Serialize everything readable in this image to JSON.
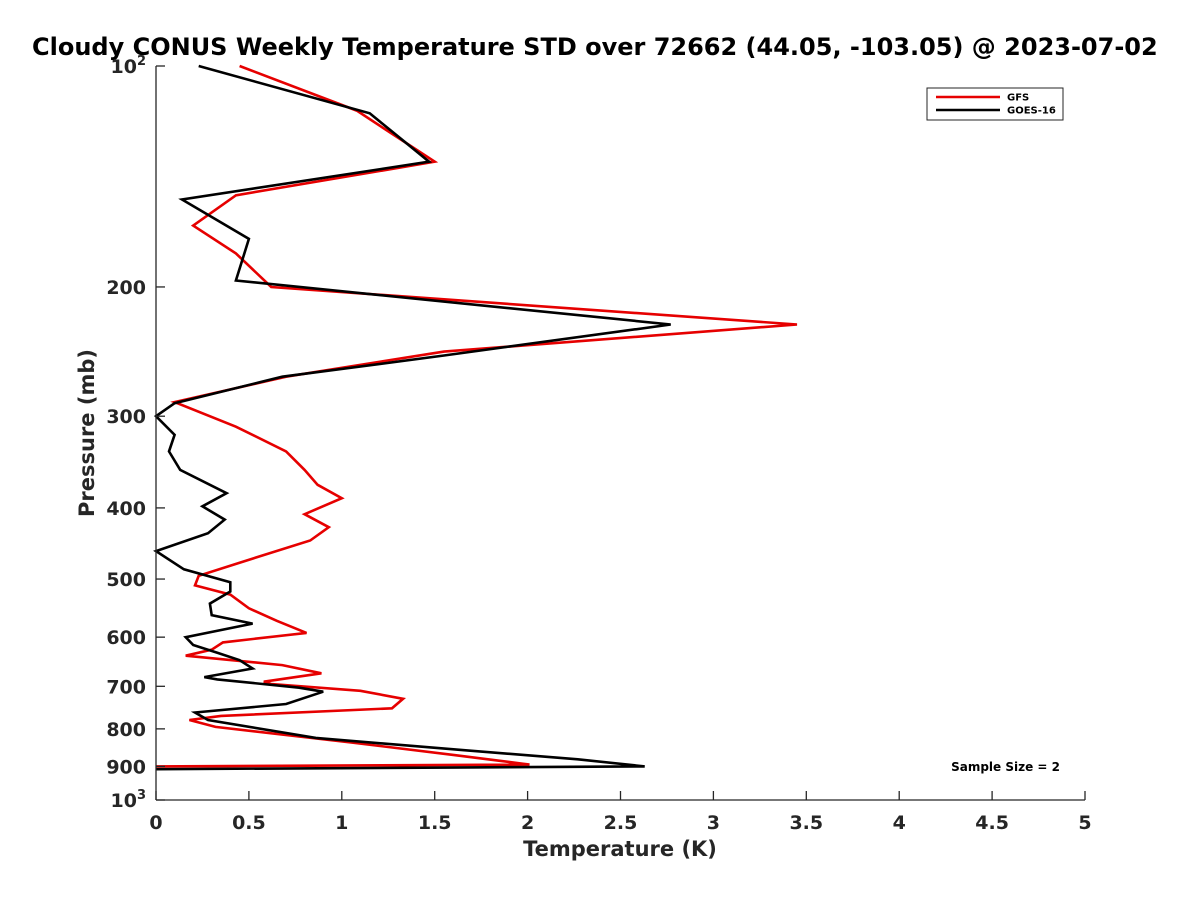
{
  "chart_data": {
    "type": "line",
    "title": "Cloudy CONUS Weekly Temperature STD over 72662 (44.05, -103.05) @ 2023-07-02",
    "xlabel": "Temperature (K)",
    "ylabel": "Pressure (mb)",
    "xlim": [
      0,
      5
    ],
    "ylim": [
      100,
      1000
    ],
    "yscale": "log",
    "y_reversed": true,
    "grid": false,
    "legend_position": "top-right",
    "x_ticks": [
      0,
      0.5,
      1,
      1.5,
      2,
      2.5,
      3,
      3.5,
      4,
      4.5,
      5
    ],
    "x_tick_labels": [
      "0",
      "0.5",
      "1",
      "1.5",
      "2",
      "2.5",
      "3",
      "3.5",
      "4",
      "4.5",
      "5"
    ],
    "y_ticks": [
      100,
      200,
      300,
      400,
      500,
      600,
      700,
      800,
      900,
      1000
    ],
    "y_tick_labels": [
      {
        "base": "10",
        "exp": "2"
      },
      {
        "base": "200",
        "exp": ""
      },
      {
        "base": "300",
        "exp": ""
      },
      {
        "base": "400",
        "exp": ""
      },
      {
        "base": "500",
        "exp": ""
      },
      {
        "base": "600",
        "exp": ""
      },
      {
        "base": "700",
        "exp": ""
      },
      {
        "base": "800",
        "exp": ""
      },
      {
        "base": "900",
        "exp": ""
      },
      {
        "base": "10",
        "exp": "3"
      }
    ],
    "annotation": "Sample Size = 2",
    "series": [
      {
        "name": "GFS",
        "color": "#e60000",
        "points": [
          [
            0.45,
            100
          ],
          [
            1.08,
            115
          ],
          [
            1.5,
            135
          ],
          [
            0.43,
            150
          ],
          [
            0.2,
            165
          ],
          [
            0.43,
            180
          ],
          [
            0.62,
            200
          ],
          [
            3.45,
            225
          ],
          [
            1.55,
            245
          ],
          [
            0.7,
            265
          ],
          [
            0.1,
            287
          ],
          [
            0.43,
            310
          ],
          [
            0.7,
            335
          ],
          [
            0.8,
            355
          ],
          [
            0.87,
            372
          ],
          [
            1.0,
            388
          ],
          [
            0.8,
            408
          ],
          [
            0.93,
            425
          ],
          [
            0.83,
            443
          ],
          [
            0.45,
            475
          ],
          [
            0.23,
            495
          ],
          [
            0.21,
            510
          ],
          [
            0.4,
            525
          ],
          [
            0.5,
            548
          ],
          [
            0.65,
            570
          ],
          [
            0.81,
            592
          ],
          [
            0.36,
            610
          ],
          [
            0.3,
            624
          ],
          [
            0.16,
            636
          ],
          [
            0.68,
            655
          ],
          [
            0.89,
            672
          ],
          [
            0.58,
            690
          ],
          [
            0.62,
            695
          ],
          [
            1.1,
            710
          ],
          [
            1.33,
            728
          ],
          [
            1.27,
            750
          ],
          [
            0.35,
            768
          ],
          [
            0.18,
            778
          ],
          [
            0.32,
            795
          ],
          [
            1.05,
            835
          ],
          [
            1.6,
            868
          ],
          [
            2.01,
            895
          ],
          [
            0,
            900
          ]
        ]
      },
      {
        "name": "GOES-16",
        "color": "#000000",
        "points": [
          [
            0.23,
            100
          ],
          [
            1.15,
            116
          ],
          [
            1.47,
            135
          ],
          [
            0.14,
            152
          ],
          [
            0.5,
            172
          ],
          [
            0.43,
            196
          ],
          [
            2.77,
            225
          ],
          [
            1.55,
            248
          ],
          [
            0.68,
            265
          ],
          [
            0.1,
            288
          ],
          [
            0,
            300
          ],
          [
            0.1,
            318
          ],
          [
            0.07,
            335
          ],
          [
            0.13,
            355
          ],
          [
            0.38,
            382
          ],
          [
            0.25,
            398
          ],
          [
            0.37,
            415
          ],
          [
            0.28,
            433
          ],
          [
            0,
            458
          ],
          [
            0.15,
            485
          ],
          [
            0.4,
            505
          ],
          [
            0.4,
            520
          ],
          [
            0.29,
            540
          ],
          [
            0.3,
            560
          ],
          [
            0.52,
            575
          ],
          [
            0.16,
            600
          ],
          [
            0.2,
            615
          ],
          [
            0.33,
            630
          ],
          [
            0.45,
            645
          ],
          [
            0.52,
            662
          ],
          [
            0.26,
            680
          ],
          [
            0.33,
            685
          ],
          [
            0.77,
            703
          ],
          [
            0.9,
            712
          ],
          [
            0.7,
            740
          ],
          [
            0.21,
            760
          ],
          [
            0.28,
            778
          ],
          [
            0.86,
            823
          ],
          [
            1.65,
            855
          ],
          [
            2.27,
            880
          ],
          [
            2.63,
            900
          ],
          [
            0,
            908
          ]
        ]
      }
    ]
  }
}
